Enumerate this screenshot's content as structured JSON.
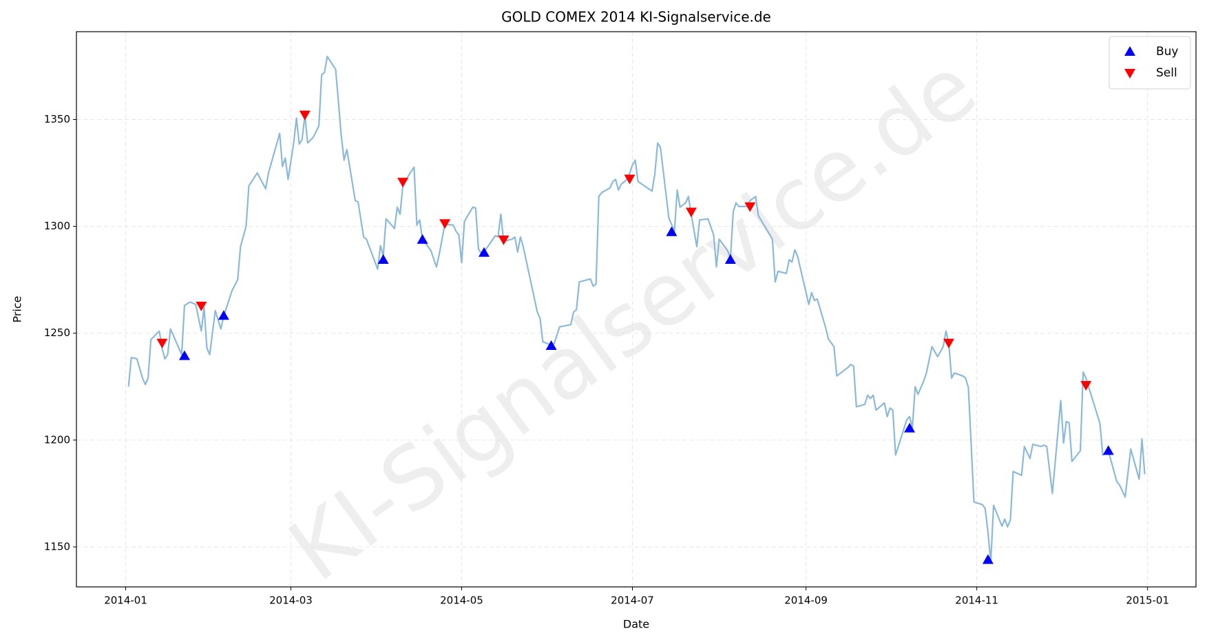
{
  "chart_data": {
    "type": "line",
    "title": "GOLD COMEX 2014 KI-Signalservice.de",
    "watermark": "KI-Signalservice.de",
    "xlabel": "Date",
    "ylabel": "Price",
    "xlim": [
      -17.6,
      382.3
    ],
    "ylim": [
      1131.3,
      1391.1
    ],
    "xticks": [
      {
        "value": 0,
        "label": "2014-01"
      },
      {
        "value": 59,
        "label": "2014-03"
      },
      {
        "value": 120,
        "label": "2014-05"
      },
      {
        "value": 181,
        "label": "2014-07"
      },
      {
        "value": 243,
        "label": "2014-09"
      },
      {
        "value": 304,
        "label": "2014-11"
      },
      {
        "value": 365,
        "label": "2015-01"
      }
    ],
    "yticks": [
      1150,
      1200,
      1250,
      1300,
      1350
    ],
    "grid": true,
    "legend": "upper right",
    "series": [
      {
        "type": "line",
        "color": "#8ab9da",
        "x": [
          1,
          2,
          4,
          6,
          7,
          8,
          9,
          12,
          13,
          14,
          15,
          16,
          20,
          21,
          23,
          25,
          27,
          28,
          29,
          30,
          32,
          34,
          35,
          38,
          40,
          41,
          43,
          44,
          47,
          50,
          51,
          55,
          56,
          57,
          58,
          60,
          61,
          62,
          63,
          64,
          65,
          67,
          69,
          70,
          71,
          72,
          75,
          77,
          78,
          79,
          82,
          83,
          85,
          86,
          90,
          91,
          92,
          93,
          96,
          97,
          98,
          99,
          101,
          103,
          104,
          105,
          106,
          109,
          111,
          112,
          114,
          117,
          118,
          119,
          120,
          121,
          124,
          125,
          126,
          127,
          128,
          132,
          133,
          134,
          135,
          138,
          139,
          140,
          141,
          142,
          147,
          148,
          149,
          152,
          153,
          155,
          159,
          160,
          161,
          162,
          166,
          167,
          168,
          169,
          170,
          173,
          174,
          175,
          176,
          177,
          179,
          180,
          181,
          182,
          183,
          188,
          189,
          190,
          191,
          194,
          196,
          197,
          198,
          200,
          201,
          202,
          204,
          205,
          208,
          210,
          211,
          212,
          215,
          216,
          217,
          218,
          219,
          222,
          223,
          225,
          226,
          231,
          232,
          233,
          236,
          237,
          238,
          239,
          240,
          244,
          245,
          246,
          247,
          250,
          251,
          253,
          254,
          258,
          259,
          260,
          261,
          264,
          265,
          266,
          267,
          268,
          271,
          272,
          273,
          274,
          275,
          279,
          280,
          281,
          282,
          283,
          285,
          286,
          287,
          288,
          290,
          292,
          293,
          294,
          295,
          296,
          299,
          300,
          301,
          303,
          306,
          307,
          308,
          309,
          310,
          313,
          314,
          315,
          316,
          317,
          320,
          321,
          323,
          324,
          327,
          328,
          329,
          331,
          334,
          335,
          336,
          337,
          338,
          341,
          342,
          343,
          348,
          349,
          351,
          354,
          355,
          357,
          359,
          362,
          363,
          364
        ],
        "values": [
          1225,
          1238.6,
          1238,
          1229,
          1226,
          1229,
          1247,
          1251,
          1243,
          1238,
          1240,
          1252,
          1240,
          1263,
          1264.6,
          1263.5,
          1251,
          1262,
          1243,
          1240,
          1260.6,
          1252,
          1258,
          1270,
          1275,
          1290.5,
          1300,
          1319,
          1325,
          1317.6,
          1325,
          1343.5,
          1328,
          1332,
          1322,
          1339,
          1350.7,
          1338.5,
          1340.6,
          1352,
          1339,
          1341.7,
          1347,
          1371,
          1372,
          1379.5,
          1373.4,
          1342.4,
          1331,
          1336,
          1312,
          1311.5,
          1295,
          1294,
          1280,
          1291,
          1286,
          1303.5,
          1299,
          1309,
          1305.7,
          1319,
          1323.7,
          1327.7,
          1300.6,
          1303,
          1294,
          1288.7,
          1281,
          1287,
          1301,
          1300.6,
          1297.7,
          1296,
          1283,
          1302.4,
          1309,
          1308.6,
          1289.5,
          1287.3,
          1288,
          1295.6,
          1295,
          1305.7,
          1293,
          1294,
          1295,
          1288,
          1295,
          1290.5,
          1260,
          1257,
          1246,
          1244.4,
          1245,
          1253,
          1254,
          1260,
          1261,
          1274,
          1275.4,
          1272,
          1273,
          1314,
          1315.8,
          1318,
          1321,
          1322,
          1317,
          1319.7,
          1321.9,
          1324.8,
          1328.7,
          1331,
          1321,
          1316.5,
          1324.4,
          1339,
          1337,
          1304,
          1297.7,
          1317,
          1309,
          1311,
          1314,
          1305.7,
          1290.5,
          1303,
          1303.5,
          1296,
          1281,
          1294,
          1288.7,
          1285,
          1306.8,
          1311,
          1309.3,
          1309.3,
          1312,
          1314,
          1305,
          1294,
          1274,
          1279,
          1278,
          1284.4,
          1283.3,
          1289,
          1286,
          1263.5,
          1269,
          1265.3,
          1266,
          1252.7,
          1247.3,
          1243.7,
          1230,
          1234,
          1235.4,
          1234.7,
          1215.6,
          1216.7,
          1221,
          1219.5,
          1221,
          1214,
          1217.4,
          1211,
          1215,
          1214,
          1193,
          1209.5,
          1211,
          1206,
          1225,
          1221.4,
          1227.5,
          1231.4,
          1237.6,
          1243.7,
          1239,
          1243.7,
          1251,
          1245.5,
          1229,
          1231.4,
          1230,
          1229,
          1224.6,
          1171,
          1169.8,
          1168,
          1157,
          1142.8,
          1169.5,
          1159.7,
          1163,
          1159.4,
          1162.6,
          1185.3,
          1183.5,
          1197,
          1191.4,
          1198,
          1197,
          1197.6,
          1197,
          1175,
          1218.5,
          1198.6,
          1208.7,
          1208,
          1190,
          1195,
          1231.8,
          1229,
          1207.7,
          1193,
          1195,
          1180.6,
          1179,
          1173.4,
          1195.8,
          1181.7,
          1200.5,
          1184
        ]
      },
      {
        "type": "scatter",
        "name": "Buy",
        "color": "#0000ff",
        "marker": "up",
        "x": [
          21,
          35,
          92,
          106,
          128,
          152,
          195,
          216,
          280,
          308,
          351
        ],
        "values": [
          1239.4,
          1258.2,
          1284.4,
          1293.8,
          1287.7,
          1244.1,
          1297.4,
          1284.4,
          1205.5,
          1144,
          1195
        ]
      },
      {
        "type": "scatter",
        "name": "Sell",
        "color": "#ff0000",
        "marker": "down",
        "x": [
          13,
          27,
          64,
          99,
          114,
          135,
          180,
          202,
          223,
          294,
          343
        ],
        "values": [
          1245.5,
          1262.8,
          1352.2,
          1320.8,
          1301.4,
          1293.8,
          1322.3,
          1306.8,
          1309.3,
          1245.5,
          1225.7
        ]
      }
    ]
  }
}
